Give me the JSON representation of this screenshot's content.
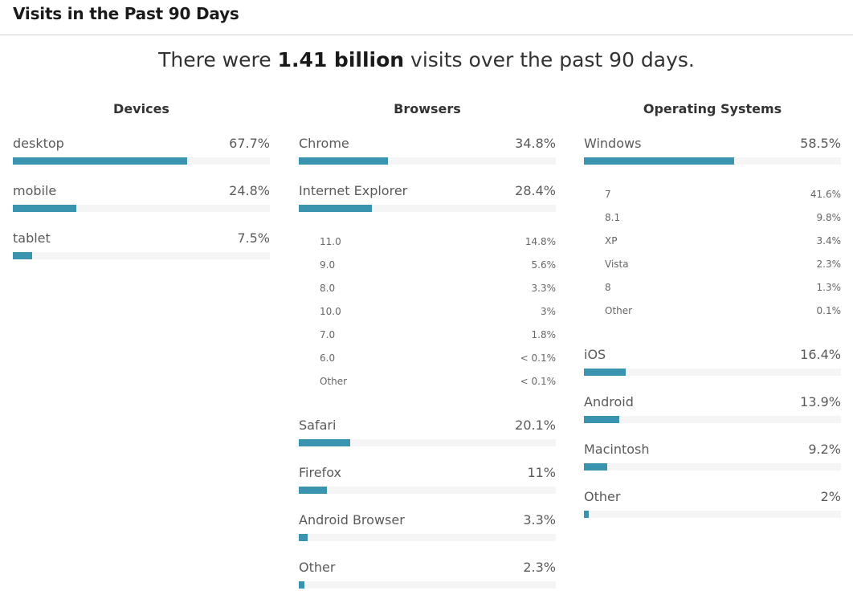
{
  "header": {
    "title": "Visits in the Past 90 Days"
  },
  "summary": {
    "prefix": "There were ",
    "highlight": "1.41 billion",
    "suffix": " visits over the past 90 days."
  },
  "colors": {
    "bar": "#3a94b0",
    "track": "#f5f5f5",
    "divider": "#d6d6d6"
  },
  "columns": [
    {
      "title": "Devices",
      "items": [
        {
          "label": "desktop",
          "value": "67.7%",
          "pct": 67.7,
          "sub": []
        },
        {
          "label": "mobile",
          "value": "24.8%",
          "pct": 24.8,
          "sub": []
        },
        {
          "label": "tablet",
          "value": "7.5%",
          "pct": 7.5,
          "sub": []
        }
      ]
    },
    {
      "title": "Browsers",
      "items": [
        {
          "label": "Chrome",
          "value": "34.8%",
          "pct": 34.8,
          "sub": []
        },
        {
          "label": "Internet Explorer",
          "value": "28.4%",
          "pct": 28.4,
          "sub": [
            {
              "label": "11.0",
              "value": "14.8%"
            },
            {
              "label": "9.0",
              "value": "5.6%"
            },
            {
              "label": "8.0",
              "value": "3.3%"
            },
            {
              "label": "10.0",
              "value": "3%"
            },
            {
              "label": "7.0",
              "value": "1.8%"
            },
            {
              "label": "6.0",
              "value": "< 0.1%"
            },
            {
              "label": "Other",
              "value": "< 0.1%"
            }
          ]
        },
        {
          "label": "Safari",
          "value": "20.1%",
          "pct": 20.1,
          "sub": []
        },
        {
          "label": "Firefox",
          "value": "11%",
          "pct": 11,
          "sub": []
        },
        {
          "label": "Android Browser",
          "value": "3.3%",
          "pct": 3.3,
          "sub": []
        },
        {
          "label": "Other",
          "value": "2.3%",
          "pct": 2.3,
          "sub": []
        }
      ]
    },
    {
      "title": "Operating Systems",
      "items": [
        {
          "label": "Windows",
          "value": "58.5%",
          "pct": 58.5,
          "sub": [
            {
              "label": "7",
              "value": "41.6%"
            },
            {
              "label": "8.1",
              "value": "9.8%"
            },
            {
              "label": "XP",
              "value": "3.4%"
            },
            {
              "label": "Vista",
              "value": "2.3%"
            },
            {
              "label": "8",
              "value": "1.3%"
            },
            {
              "label": "Other",
              "value": "0.1%"
            }
          ]
        },
        {
          "label": "iOS",
          "value": "16.4%",
          "pct": 16.4,
          "sub": []
        },
        {
          "label": "Android",
          "value": "13.9%",
          "pct": 13.9,
          "sub": []
        },
        {
          "label": "Macintosh",
          "value": "9.2%",
          "pct": 9.2,
          "sub": []
        },
        {
          "label": "Other",
          "value": "2%",
          "pct": 2,
          "sub": []
        }
      ]
    }
  ]
}
